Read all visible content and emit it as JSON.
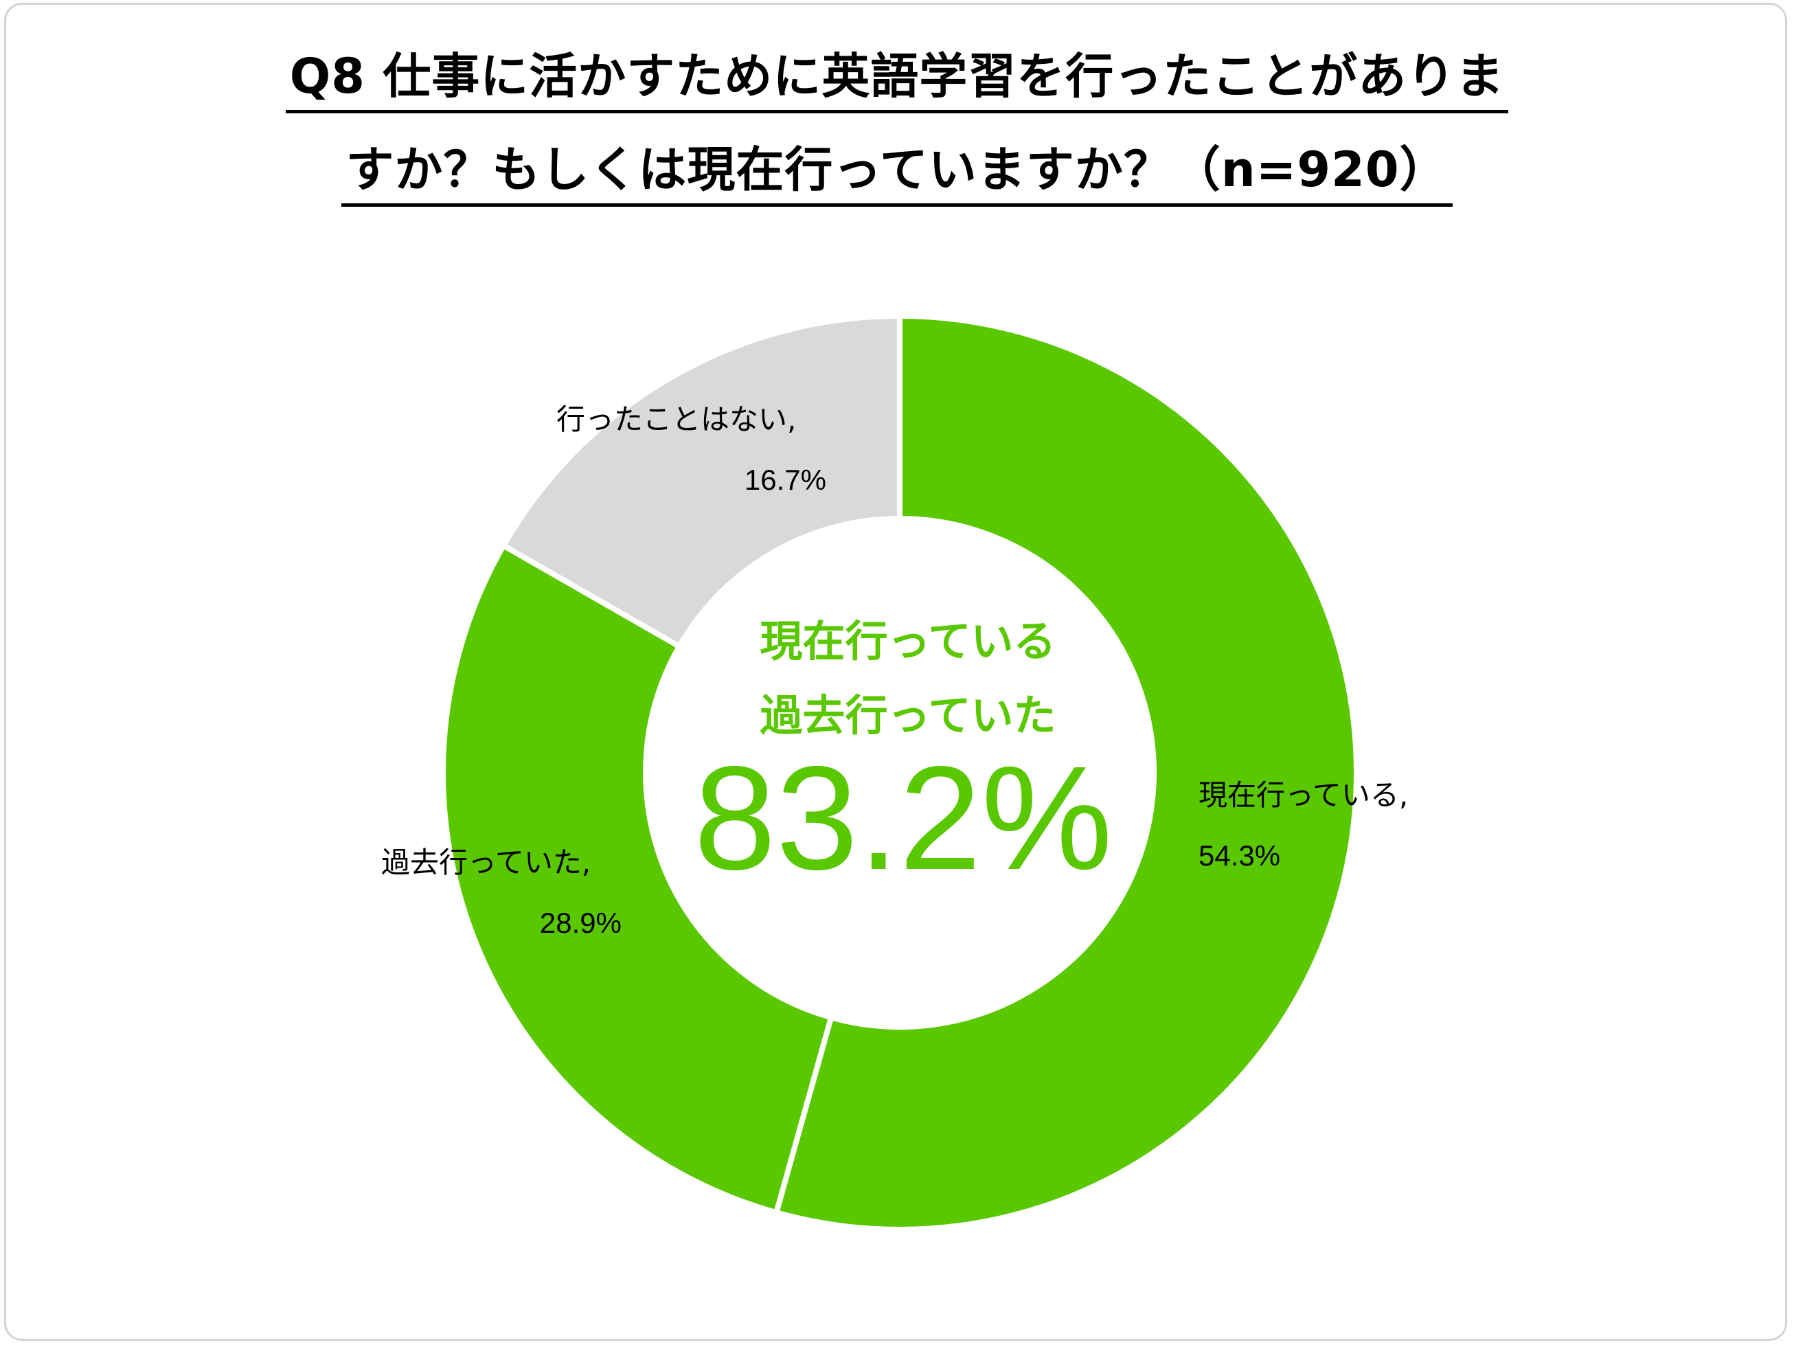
{
  "title_line1": "Q8 仕事に活かすために英語学習を行ったことがありま",
  "title_line2": "すか？もしくは現在行っていますか？（n=920）",
  "center": {
    "line1": "現在行っている",
    "line2": "過去行っていた",
    "value": "83.2%",
    "color": "#5ac800"
  },
  "chart_data": {
    "type": "pie",
    "donut": true,
    "title": "Q8 仕事に活かすために英語学習を行ったことがありますか？もしくは現在行っていますか？（n=920）",
    "n": 920,
    "unit": "%",
    "slices": [
      {
        "name": "現在行っている",
        "value": 54.3,
        "label_name": "現在行っている,",
        "label_value": "54.3%",
        "color": "#5ac800"
      },
      {
        "name": "過去行っていた",
        "value": 28.9,
        "label_name": "過去行っていた,",
        "label_value": "28.9%",
        "color": "#5ac800"
      },
      {
        "name": "行ったことはない",
        "value": 16.7,
        "label_name": "行ったことはない,",
        "label_value": "16.7%",
        "color": "#d9d9d9"
      }
    ]
  }
}
